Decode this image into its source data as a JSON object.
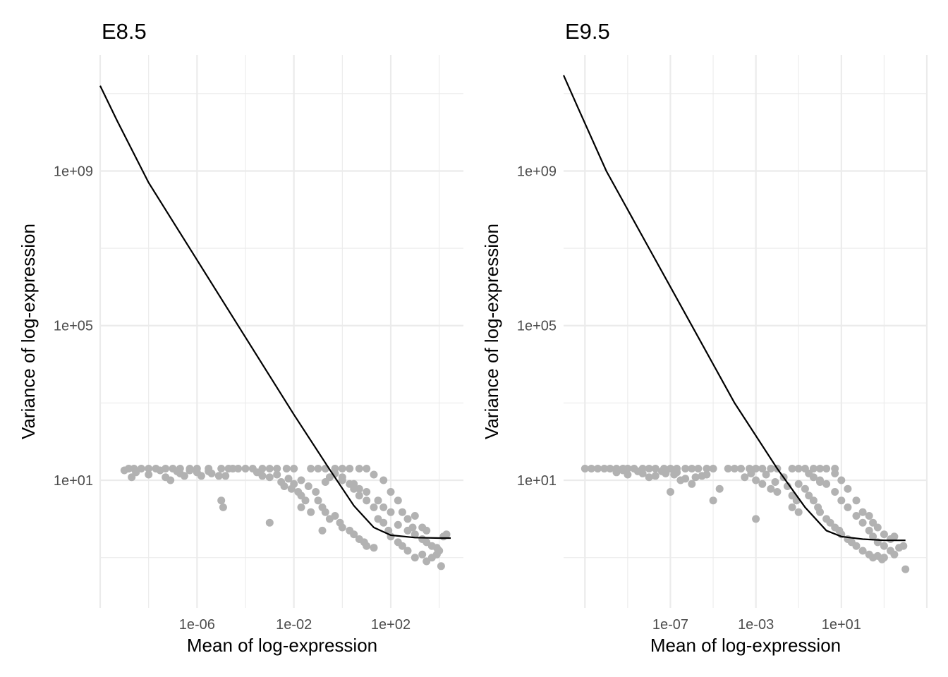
{
  "chart_data": [
    {
      "type": "scatter",
      "title": "E8.5",
      "xlabel": "Mean of log-expression",
      "ylabel": "Variance of log-expression",
      "x_scale": "log10",
      "y_scale": "log10",
      "xlim": [
        1e-10,
        100000.0
      ],
      "ylim": [
        0.005,
        1000000000000.0
      ],
      "x_ticks": [
        {
          "value": 1e-06,
          "label": "1e-06"
        },
        {
          "value": 0.01,
          "label": "1e-02"
        },
        {
          "value": 100.0,
          "label": "1e+02"
        }
      ],
      "y_ticks": [
        {
          "value": 10.0,
          "label": "1e+01"
        },
        {
          "value": 100000.0,
          "label": "1e+05"
        },
        {
          "value": 1000000000.0,
          "label": "1e+09"
        }
      ],
      "grid": true,
      "point_color": "#b2b2b2",
      "line_color": "#000000",
      "fit_line": {
        "x": [
          1e-10,
          5e-10,
          1e-08,
          1e-06,
          0.0001,
          0.01,
          0.3,
          3,
          20,
          100,
          1000,
          10000,
          30000
        ],
        "y": [
          160000000000.0,
          20000000000.0,
          500000000.0,
          5000000.0,
          50000.0,
          500,
          19,
          2.2,
          0.6,
          0.38,
          0.33,
          0.32,
          0.32
        ]
      },
      "points": [
        [
          1e-09,
          18
        ],
        [
          1.5e-09,
          20
        ],
        [
          2.5e-09,
          20
        ],
        [
          5e-09,
          20
        ],
        [
          1e-08,
          20
        ],
        [
          2e-08,
          20
        ],
        [
          5e-08,
          20
        ],
        [
          1e-07,
          20
        ],
        [
          2e-07,
          20
        ],
        [
          5e-07,
          20
        ],
        [
          1e-06,
          20
        ],
        [
          3e-06,
          20
        ],
        [
          1e-05,
          20
        ],
        [
          2e-05,
          20
        ],
        [
          2e-09,
          12
        ],
        [
          3e-09,
          16
        ],
        [
          1e-08,
          14
        ],
        [
          3e-08,
          18
        ],
        [
          5e-08,
          12
        ],
        [
          8e-08,
          10
        ],
        [
          1.5e-07,
          17
        ],
        [
          2e-07,
          15
        ],
        [
          3e-07,
          13
        ],
        [
          5e-07,
          18
        ],
        [
          1e-06,
          16
        ],
        [
          1.5e-06,
          13
        ],
        [
          3e-06,
          17
        ],
        [
          4e-06,
          15
        ],
        [
          8e-06,
          13
        ],
        [
          1e-05,
          3
        ],
        [
          1.2e-05,
          2
        ],
        [
          1.5e-05,
          13
        ],
        [
          3e-05,
          20
        ],
        [
          5e-05,
          20
        ],
        [
          0.0001,
          20
        ],
        [
          0.0002,
          20
        ],
        [
          0.0005,
          20
        ],
        [
          0.001,
          20
        ],
        [
          0.002,
          20
        ],
        [
          0.005,
          20
        ],
        [
          0.01,
          20
        ],
        [
          0.0003,
          16
        ],
        [
          0.0005,
          13
        ],
        [
          0.001,
          12
        ],
        [
          0.002,
          14
        ],
        [
          0.003,
          9
        ],
        [
          0.004,
          7
        ],
        [
          0.006,
          11
        ],
        [
          0.008,
          6
        ],
        [
          0.01,
          8
        ],
        [
          0.015,
          5
        ],
        [
          0.02,
          4
        ],
        [
          0.03,
          3
        ],
        [
          0.001,
          0.8
        ],
        [
          0.02,
          2
        ],
        [
          0.05,
          1.5
        ],
        [
          0.05,
          20
        ],
        [
          0.1,
          20
        ],
        [
          0.2,
          20
        ],
        [
          0.5,
          20
        ],
        [
          1,
          20
        ],
        [
          2,
          20
        ],
        [
          5,
          20
        ],
        [
          10,
          20
        ],
        [
          0.02,
          10
        ],
        [
          0.04,
          7
        ],
        [
          0.08,
          5
        ],
        [
          0.1,
          3
        ],
        [
          0.15,
          2
        ],
        [
          0.2,
          1.5
        ],
        [
          0.3,
          1
        ],
        [
          0.15,
          0.5
        ],
        [
          0.5,
          1.2
        ],
        [
          0.8,
          0.8
        ],
        [
          1,
          0.6
        ],
        [
          2,
          0.5
        ],
        [
          3,
          0.4
        ],
        [
          5,
          0.3
        ],
        [
          8,
          0.25
        ],
        [
          10,
          0.2
        ],
        [
          20,
          0.18
        ],
        [
          1,
          10
        ],
        [
          2,
          8
        ],
        [
          3,
          6
        ],
        [
          5,
          4
        ],
        [
          10,
          3
        ],
        [
          20,
          2
        ],
        [
          30,
          1
        ],
        [
          50,
          0.8
        ],
        [
          80,
          0.5
        ],
        [
          100,
          0.35
        ],
        [
          200,
          0.25
        ],
        [
          300,
          0.2
        ],
        [
          500,
          0.15
        ],
        [
          1000,
          0.1
        ],
        [
          2000,
          0.12
        ],
        [
          3000,
          0.08
        ],
        [
          5000,
          0.1
        ],
        [
          8000,
          0.12
        ],
        [
          12000,
          0.06
        ],
        [
          20,
          14
        ],
        [
          50,
          10
        ],
        [
          100,
          5
        ],
        [
          200,
          3
        ],
        [
          300,
          1.5
        ],
        [
          500,
          1
        ],
        [
          800,
          0.6
        ],
        [
          1000,
          0.4
        ],
        [
          2000,
          0.3
        ],
        [
          3000,
          0.25
        ],
        [
          5000,
          0.2
        ],
        [
          8000,
          0.18
        ],
        [
          10000,
          0.15
        ],
        [
          15000,
          0.35
        ],
        [
          20000,
          0.4
        ],
        [
          1000,
          1.2
        ],
        [
          3000,
          0.5
        ],
        [
          2000,
          0.6
        ],
        [
          500,
          0.5
        ],
        [
          200,
          0.7
        ],
        [
          100,
          1.5
        ],
        [
          50,
          2
        ],
        [
          30,
          3
        ],
        [
          10,
          5
        ],
        [
          5,
          6
        ],
        [
          3,
          8
        ],
        [
          1,
          12
        ],
        [
          0.5,
          15
        ],
        [
          0.3,
          12
        ],
        [
          0.2,
          9
        ]
      ]
    },
    {
      "type": "scatter",
      "title": "E9.5",
      "xlabel": "Mean of log-expression",
      "ylabel": "Variance of log-expression",
      "x_scale": "log10",
      "y_scale": "log10",
      "xlim": [
        1e-12,
        100000.0
      ],
      "ylim": [
        0.005,
        1000000000000.0
      ],
      "x_ticks": [
        {
          "value": 1e-07,
          "label": "1e-07"
        },
        {
          "value": 0.001,
          "label": "1e-03"
        },
        {
          "value": 10.0,
          "label": "1e+01"
        }
      ],
      "y_ticks": [
        {
          "value": 10.0,
          "label": "1e+01"
        },
        {
          "value": 100000.0,
          "label": "1e+05"
        },
        {
          "value": 1000000000.0,
          "label": "1e+09"
        }
      ],
      "grid": true,
      "point_color": "#b2b2b2",
      "line_color": "#000000",
      "fit_line": {
        "x": [
          1e-12,
          5e-12,
          1e-10,
          1e-08,
          1e-06,
          0.0001,
          0.01,
          0.2,
          2,
          10,
          100,
          1000,
          10000
        ],
        "y": [
          300000000000.0,
          40000000000.0,
          1000000000.0,
          10000000.0,
          100000.0,
          1000,
          20,
          2,
          0.5,
          0.35,
          0.3,
          0.28,
          0.28
        ]
      },
      "points": [
        [
          1e-11,
          20
        ],
        [
          2e-11,
          20
        ],
        [
          4e-11,
          20
        ],
        [
          8e-11,
          20
        ],
        [
          1.5e-10,
          20
        ],
        [
          3e-10,
          20
        ],
        [
          6e-10,
          20
        ],
        [
          1e-09,
          20
        ],
        [
          2e-09,
          20
        ],
        [
          5e-09,
          20
        ],
        [
          1e-08,
          20
        ],
        [
          2e-08,
          20
        ],
        [
          5e-08,
          20
        ],
        [
          1e-07,
          20
        ],
        [
          2e-07,
          20
        ],
        [
          5e-07,
          20
        ],
        [
          1e-06,
          20
        ],
        [
          2e-06,
          20
        ],
        [
          5e-06,
          20
        ],
        [
          1e-05,
          20
        ],
        [
          3e-10,
          16
        ],
        [
          6e-10,
          18
        ],
        [
          1e-09,
          14
        ],
        [
          3e-09,
          17
        ],
        [
          5e-09,
          15
        ],
        [
          1e-08,
          12
        ],
        [
          2e-08,
          13
        ],
        [
          4e-08,
          17
        ],
        [
          6e-08,
          15
        ],
        [
          1e-07,
          5
        ],
        [
          1.5e-07,
          14
        ],
        [
          2e-07,
          16
        ],
        [
          3e-07,
          10
        ],
        [
          5e-07,
          11
        ],
        [
          1e-06,
          8
        ],
        [
          1.5e-06,
          12
        ],
        [
          3e-06,
          13
        ],
        [
          5e-06,
          14
        ],
        [
          1e-05,
          3
        ],
        [
          2e-05,
          6
        ],
        [
          5e-05,
          20
        ],
        [
          0.0001,
          20
        ],
        [
          0.0002,
          20
        ],
        [
          0.0005,
          20
        ],
        [
          0.001,
          20
        ],
        [
          0.002,
          20
        ],
        [
          0.005,
          20
        ],
        [
          0.01,
          20
        ],
        [
          0.0003,
          12
        ],
        [
          0.0006,
          15
        ],
        [
          0.001,
          10
        ],
        [
          0.002,
          8
        ],
        [
          0.003,
          14
        ],
        [
          0.005,
          6
        ],
        [
          0.008,
          9
        ],
        [
          0.01,
          5
        ],
        [
          0.02,
          12
        ],
        [
          0.03,
          7
        ],
        [
          0.05,
          4
        ],
        [
          0.08,
          3
        ],
        [
          0.001,
          1
        ],
        [
          0.05,
          2
        ],
        [
          0.1,
          1.5
        ],
        [
          0.05,
          20
        ],
        [
          0.1,
          20
        ],
        [
          0.2,
          20
        ],
        [
          0.5,
          20
        ],
        [
          1,
          20
        ],
        [
          2,
          20
        ],
        [
          5,
          20
        ],
        [
          0.1,
          8
        ],
        [
          0.2,
          6
        ],
        [
          0.3,
          4
        ],
        [
          0.5,
          3
        ],
        [
          0.8,
          2
        ],
        [
          1,
          1.5
        ],
        [
          2,
          1
        ],
        [
          3,
          0.8
        ],
        [
          5,
          0.6
        ],
        [
          8,
          0.5
        ],
        [
          10,
          0.4
        ],
        [
          20,
          0.3
        ],
        [
          30,
          0.25
        ],
        [
          50,
          0.2
        ],
        [
          100,
          0.15
        ],
        [
          200,
          0.12
        ],
        [
          300,
          0.1
        ],
        [
          500,
          0.11
        ],
        [
          800,
          0.09
        ],
        [
          1000,
          0.1
        ],
        [
          1,
          10
        ],
        [
          2,
          8
        ],
        [
          5,
          5
        ],
        [
          10,
          3
        ],
        [
          20,
          2
        ],
        [
          50,
          1.2
        ],
        [
          100,
          0.8
        ],
        [
          200,
          0.5
        ],
        [
          300,
          0.35
        ],
        [
          500,
          0.25
        ],
        [
          1000,
          0.2
        ],
        [
          2000,
          0.15
        ],
        [
          3000,
          0.12
        ],
        [
          5000,
          0.18
        ],
        [
          8000,
          0.2
        ],
        [
          10000,
          0.05
        ],
        [
          5,
          15
        ],
        [
          10,
          10
        ],
        [
          20,
          6
        ],
        [
          50,
          3
        ],
        [
          100,
          1.5
        ],
        [
          200,
          1.2
        ],
        [
          300,
          0.8
        ],
        [
          500,
          0.6
        ],
        [
          1000,
          0.4
        ],
        [
          2000,
          0.3
        ],
        [
          3000,
          0.35
        ],
        [
          0.3,
          15
        ],
        [
          0.5,
          12
        ],
        [
          1,
          9
        ]
      ]
    }
  ]
}
